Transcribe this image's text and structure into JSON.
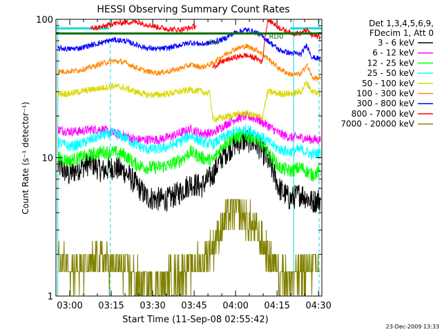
{
  "chart_data": {
    "type": "line",
    "title": "HESSI Observing Summary Count Rates",
    "xlabel": "Start Time (11-Sep-08 02:55:42)",
    "ylabel": "Count Rate (s⁻¹ detector⁻¹)",
    "y_scale": "log",
    "ylim": [
      1,
      100
    ],
    "xlim_minutes": [
      -0.7,
      95.5
    ],
    "x_ticks": [
      "03:00",
      "03:15",
      "03:30",
      "03:45",
      "04:00",
      "04:15",
      "04:30"
    ],
    "y_ticks": [
      "1",
      "10",
      "100"
    ],
    "legend_header": [
      "Det 1,3,4,5,6,9,",
      "FDecim 1, Att 0"
    ],
    "legend_position": "right",
    "grid": false,
    "footer_date": "23-Dec-2009 13:33",
    "annotations": [
      {
        "text": "RD0",
        "x_min": 79,
        "y": 76,
        "color": "#007000"
      },
      {
        "text": "D4",
        "x_min": 56.5,
        "y": 69,
        "color": "#007000"
      }
    ],
    "orbit_markers": {
      "solid_x_min": [
        0,
        85.3
      ],
      "dashed_x_min": [
        19,
        94.5
      ],
      "color": "#00dede",
      "cyan_bars": [
        {
          "x": [
            -0.7,
            18.5
          ],
          "y": 86
        },
        {
          "x": [
            84,
            95.5
          ],
          "y": 86
        }
      ]
    },
    "green_line": {
      "x": [
        -0.7,
        95.5
      ],
      "y": 79,
      "color": "#007000"
    },
    "series": [
      {
        "name": "3 - 6 keV",
        "color": "#000000",
        "x": [
          0,
          4,
          8,
          12,
          16,
          20,
          24,
          28,
          32,
          36,
          40,
          44,
          48,
          52,
          56,
          60,
          64,
          68,
          72,
          76,
          80,
          84,
          88,
          92,
          95
        ],
        "y": [
          8.8,
          7.5,
          8.5,
          9.2,
          8.0,
          8.5,
          8.0,
          6.5,
          5.2,
          5.0,
          5.0,
          5.6,
          6.5,
          6.2,
          7.5,
          10.5,
          12.5,
          13.5,
          12.5,
          9.5,
          6.0,
          5.0,
          5.5,
          4.8,
          5.0
        ]
      },
      {
        "name": "6 - 12 keV",
        "color": "#ff00ff",
        "x": [
          0,
          4,
          8,
          12,
          16,
          20,
          24,
          28,
          32,
          36,
          40,
          44,
          48,
          52,
          56,
          60,
          64,
          68,
          72,
          76,
          80,
          84,
          88,
          92,
          95
        ],
        "y": [
          16,
          15.5,
          15.5,
          16,
          16,
          15,
          14.5,
          13.5,
          13.5,
          13.5,
          14,
          15,
          16,
          15,
          15,
          17,
          19,
          20,
          19,
          17,
          15,
          14,
          14,
          13.5,
          13.5
        ]
      },
      {
        "name": "12 - 25 keV",
        "color": "#00ff00",
        "x": [
          0,
          4,
          8,
          12,
          16,
          20,
          24,
          28,
          32,
          36,
          40,
          44,
          48,
          52,
          56,
          60,
          64,
          68,
          72,
          76,
          80,
          84,
          88,
          92,
          95
        ],
        "y": [
          10,
          9.5,
          10,
          10.5,
          11,
          11,
          10.5,
          9.0,
          8.5,
          8.5,
          8.8,
          9.5,
          11,
          10,
          9.5,
          12.5,
          14,
          14.5,
          13.5,
          11,
          8.5,
          8.0,
          8.5,
          7.5,
          8.0
        ]
      },
      {
        "name": "25 - 50 keV",
        "color": "#00ffff",
        "x": [
          0,
          4,
          8,
          12,
          16,
          20,
          24,
          28,
          32,
          36,
          40,
          44,
          48,
          52,
          56,
          60,
          64,
          68,
          72,
          76,
          80,
          84,
          88,
          92,
          95
        ],
        "y": [
          13,
          12,
          12.5,
          13.5,
          14.5,
          15,
          14,
          12.5,
          11.5,
          11.5,
          12,
          13,
          14.5,
          13,
          12.5,
          14,
          15.5,
          16,
          15,
          13,
          11.5,
          11,
          11.5,
          10.5,
          11
        ]
      },
      {
        "name": "50 - 100 keV",
        "color": "#d8d800",
        "x": [
          0,
          4,
          8,
          12,
          16,
          20,
          24,
          28,
          32,
          36,
          40,
          44,
          48,
          52,
          55,
          56,
          60,
          64,
          68,
          72,
          74,
          76,
          80,
          84,
          88,
          90,
          92,
          95
        ],
        "y": [
          29,
          29,
          30,
          31,
          32,
          33,
          32,
          30,
          28.5,
          28.5,
          29,
          30,
          31,
          30,
          29,
          19,
          19.5,
          20.5,
          21,
          20,
          19.5,
          30,
          29,
          29,
          30,
          35,
          30,
          29
        ]
      },
      {
        "name": "100 - 300 keV",
        "color": "#ff8800",
        "x": [
          0,
          4,
          8,
          12,
          16,
          20,
          24,
          28,
          32,
          36,
          40,
          44,
          48,
          52,
          56,
          60,
          64,
          68,
          72,
          76,
          80,
          84,
          88,
          90,
          92,
          95
        ],
        "y": [
          42,
          42,
          43,
          45,
          48,
          50,
          49,
          45,
          42,
          41,
          42,
          44,
          47,
          45,
          48,
          55,
          61,
          64,
          60,
          52,
          44,
          40,
          40,
          47,
          38,
          37
        ]
      },
      {
        "name": "300 - 800 keV",
        "color": "#0000ff",
        "x": [
          0,
          4,
          8,
          12,
          16,
          20,
          24,
          28,
          32,
          36,
          40,
          44,
          48,
          52,
          56,
          60,
          64,
          68,
          72,
          76,
          80,
          84,
          88,
          90,
          92,
          95
        ],
        "y": [
          62,
          61,
          62,
          65,
          68,
          71,
          70,
          66,
          62,
          61,
          62,
          65,
          68,
          66,
          68,
          72,
          80,
          84,
          80,
          70,
          60,
          57,
          56,
          65,
          53,
          52
        ]
      },
      {
        "name": "800 - 7000 keV",
        "color": "#ff0000",
        "x": [
          56,
          60,
          64,
          68,
          72,
          74,
          76,
          80,
          84,
          88,
          90,
          92,
          95
        ],
        "y": [
          45,
          50,
          53,
          55,
          52,
          49,
          100,
          87,
          80,
          79,
          84,
          76,
          75
        ]
      },
      {
        "name": "7000 - 20000 keV",
        "color": "#808000",
        "x": [
          0,
          4,
          8,
          12,
          16,
          20,
          24,
          28,
          32,
          36,
          40,
          44,
          48,
          52,
          56,
          60,
          64,
          68,
          72,
          76,
          80,
          84,
          88,
          92,
          95
        ],
        "y": [
          1.7,
          1.7,
          1.5,
          1.7,
          1.8,
          1.6,
          1.5,
          1.3,
          1.2,
          1.2,
          1.3,
          1.4,
          1.6,
          1.7,
          2.2,
          3.4,
          4.2,
          3.6,
          2.8,
          2.0,
          1.5,
          1.3,
          1.4,
          1.6,
          1.5
        ]
      },
      {
        "name": "",
        "color": "#ff0000",
        "x": [
          12,
          16,
          20,
          24,
          28,
          32,
          36,
          40,
          44,
          48,
          50
        ],
        "y": [
          86,
          88,
          93,
          95,
          96,
          92,
          88,
          85,
          84,
          87,
          90
        ]
      }
    ]
  }
}
